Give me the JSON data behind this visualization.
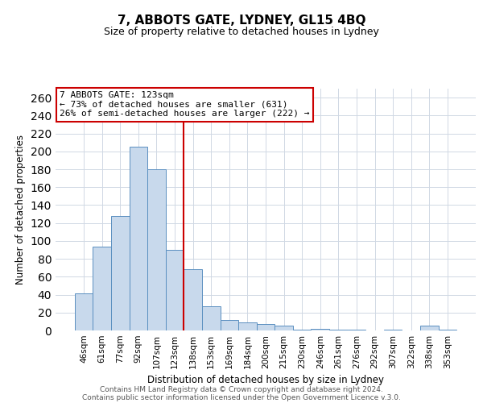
{
  "title": "7, ABBOTS GATE, LYDNEY, GL15 4BQ",
  "subtitle": "Size of property relative to detached houses in Lydney",
  "xlabel": "Distribution of detached houses by size in Lydney",
  "ylabel": "Number of detached properties",
  "categories": [
    "46sqm",
    "61sqm",
    "77sqm",
    "92sqm",
    "107sqm",
    "123sqm",
    "138sqm",
    "153sqm",
    "169sqm",
    "184sqm",
    "200sqm",
    "215sqm",
    "230sqm",
    "246sqm",
    "261sqm",
    "276sqm",
    "292sqm",
    "307sqm",
    "322sqm",
    "338sqm",
    "353sqm"
  ],
  "values": [
    41,
    94,
    128,
    205,
    180,
    90,
    68,
    27,
    12,
    9,
    7,
    5,
    1,
    2,
    1,
    1,
    0,
    1,
    0,
    5,
    1
  ],
  "bar_color": "#c8d9ec",
  "bar_edge_color": "#5a8fc0",
  "vline_color": "#cc0000",
  "annotation_title": "7 ABBOTS GATE: 123sqm",
  "annotation_line1": "← 73% of detached houses are smaller (631)",
  "annotation_line2": "26% of semi-detached houses are larger (222) →",
  "annotation_box_edge": "#cc0000",
  "ylim": [
    0,
    270
  ],
  "yticks": [
    0,
    20,
    40,
    60,
    80,
    100,
    120,
    140,
    160,
    180,
    200,
    220,
    240,
    260
  ],
  "footer1": "Contains HM Land Registry data © Crown copyright and database right 2024.",
  "footer2": "Contains public sector information licensed under the Open Government Licence v.3.0.",
  "background_color": "#ffffff",
  "grid_color": "#d0d8e4"
}
